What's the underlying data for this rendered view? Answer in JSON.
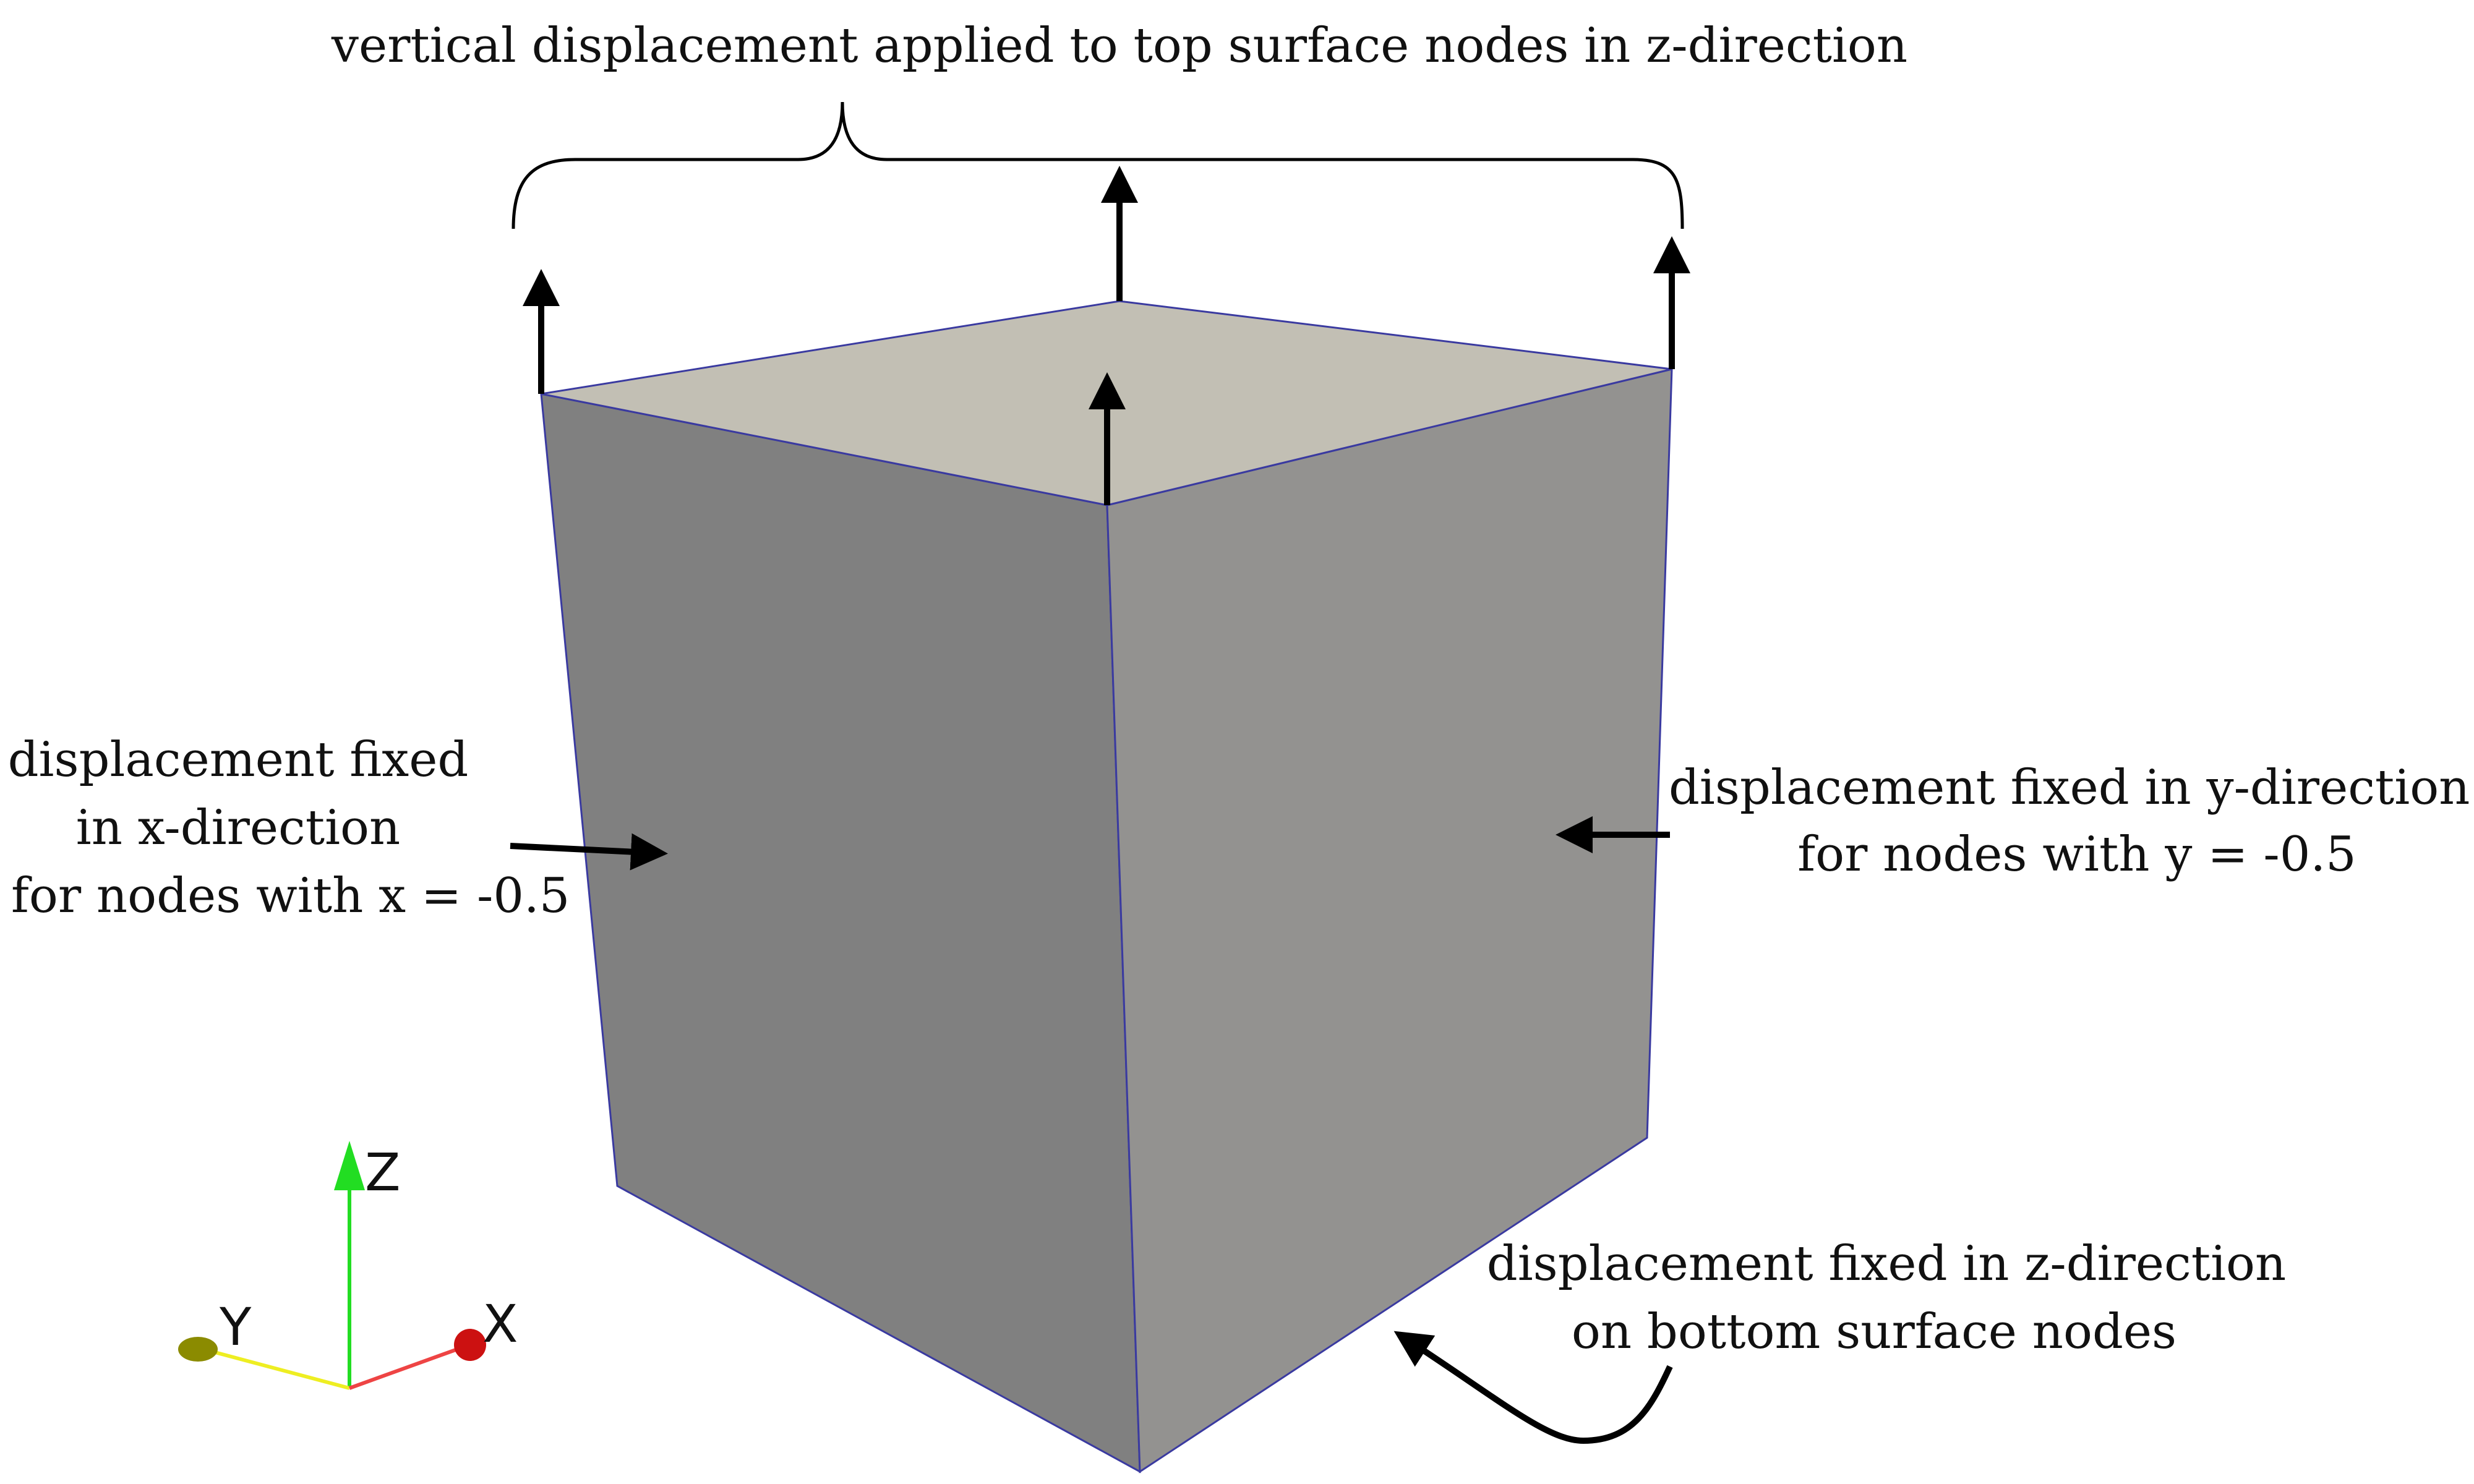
{
  "labels": {
    "top": "vertical displacement applied to top surface nodes in z-direction",
    "left": [
      "displacement fixed",
      "in x-direction",
      "for nodes with x = -0.5"
    ],
    "right": [
      "displacement fixed in y-direction",
      "for nodes with y = -0.5"
    ],
    "bottom": [
      "displacement fixed in z-direction",
      "on bottom surface nodes"
    ]
  },
  "axes": {
    "z": "Z",
    "y": "Y",
    "x": "X"
  },
  "colors": {
    "top_face": "#c2bfb4",
    "left_face": "#808080",
    "right_face": "#939290",
    "cube_edge": "#3a3aa0",
    "z_axis": "#22dd22",
    "y_axis": "#eeee22",
    "x_axis": "#ee4444",
    "y_marker": "#8b8b00",
    "x_marker": "#cc1111"
  },
  "icons": [
    "arrow-up",
    "arrow-right",
    "arrow-left",
    "curly-brace",
    "axes-triad"
  ]
}
